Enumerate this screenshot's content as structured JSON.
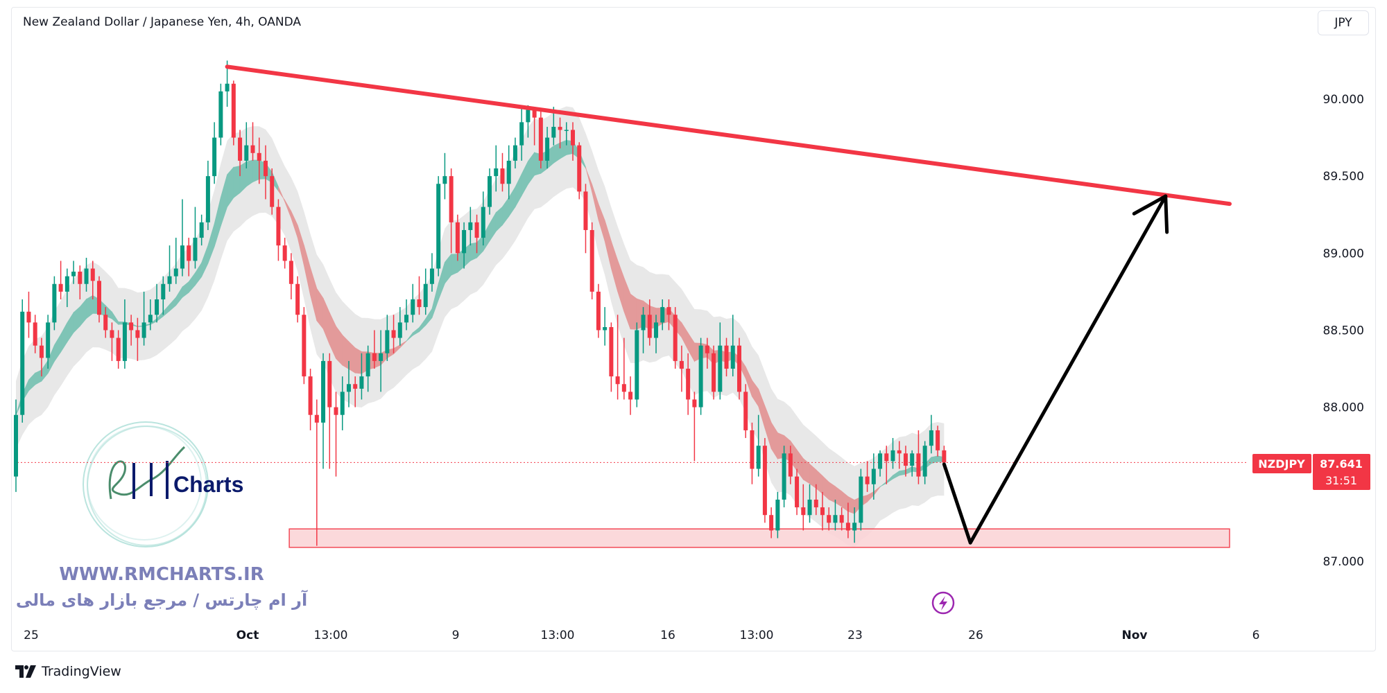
{
  "header": {
    "title": "New Zealand Dollar / Japanese Yen, 4h, OANDA",
    "currency_button": "JPY"
  },
  "colors": {
    "up": "#089981",
    "down": "#f23645",
    "trendline": "#f23645",
    "zone_fill": "#fbd5d8",
    "zone_border": "#f23645",
    "projection": "#000000",
    "ribbon_up": "#7fc4b6",
    "ribbon_down": "#e39a9a",
    "envelope": "#e4e4e4"
  },
  "price_axis": {
    "ticks": [
      "90.000",
      "89.500",
      "89.000",
      "88.500",
      "88.000",
      "87.000"
    ]
  },
  "time_axis": {
    "labels": [
      "25",
      "Oct",
      "13:00",
      "9",
      "13:00",
      "16",
      "13:00",
      "23",
      "26",
      "Nov",
      "6"
    ]
  },
  "last_price": {
    "symbol": "NZDJPY",
    "price": "87.641",
    "countdown": "31:51",
    "value": 87.641
  },
  "watermark": {
    "logo_text": "Charts",
    "url": "WWW.RMCHARTS.IR",
    "tagline": "آر ام چارتس / مرجع بازار های مالی"
  },
  "footer": {
    "brand": "TradingView"
  },
  "icons": {
    "alert": "lightning-icon",
    "brand": "tradingview-logo-icon"
  },
  "chart_data": {
    "type": "candlestick",
    "title": "New Zealand Dollar / Japanese Yen, 4h, OANDA",
    "symbol": "NZDJPY",
    "interval": "4h",
    "ylim": [
      86.55,
      90.65
    ],
    "grid": false,
    "ohlc": [
      [
        87.55,
        88.05,
        87.45,
        87.95
      ],
      [
        87.95,
        88.7,
        87.9,
        88.62
      ],
      [
        88.62,
        88.75,
        88.45,
        88.55
      ],
      [
        88.55,
        88.6,
        88.35,
        88.4
      ],
      [
        88.4,
        88.45,
        88.2,
        88.32
      ],
      [
        88.32,
        88.6,
        88.25,
        88.55
      ],
      [
        88.55,
        88.85,
        88.5,
        88.8
      ],
      [
        88.8,
        88.95,
        88.7,
        88.75
      ],
      [
        88.75,
        88.9,
        88.65,
        88.85
      ],
      [
        88.85,
        88.95,
        88.8,
        88.88
      ],
      [
        88.88,
        88.92,
        88.7,
        88.8
      ],
      [
        88.8,
        88.97,
        88.75,
        88.9
      ],
      [
        88.9,
        88.95,
        88.7,
        88.82
      ],
      [
        88.82,
        88.85,
        88.55,
        88.6
      ],
      [
        88.6,
        88.65,
        88.45,
        88.5
      ],
      [
        88.5,
        88.55,
        88.3,
        88.45
      ],
      [
        88.45,
        88.5,
        88.25,
        88.3
      ],
      [
        88.3,
        88.7,
        88.25,
        88.55
      ],
      [
        88.55,
        88.6,
        88.4,
        88.5
      ],
      [
        88.5,
        88.58,
        88.3,
        88.45
      ],
      [
        88.45,
        88.75,
        88.4,
        88.55
      ],
      [
        88.55,
        88.7,
        88.5,
        88.6
      ],
      [
        88.6,
        88.8,
        88.55,
        88.7
      ],
      [
        88.7,
        88.85,
        88.6,
        88.8
      ],
      [
        88.8,
        89.05,
        88.75,
        88.85
      ],
      [
        88.85,
        89.1,
        88.8,
        88.9
      ],
      [
        88.9,
        89.35,
        88.85,
        89.05
      ],
      [
        89.05,
        89.1,
        88.85,
        88.95
      ],
      [
        88.95,
        89.3,
        88.9,
        89.1
      ],
      [
        89.1,
        89.25,
        89.05,
        89.2
      ],
      [
        89.2,
        89.6,
        89.15,
        89.5
      ],
      [
        89.5,
        89.85,
        89.45,
        89.75
      ],
      [
        89.75,
        90.1,
        89.7,
        90.05
      ],
      [
        90.05,
        90.25,
        89.95,
        90.1
      ],
      [
        90.1,
        90.12,
        89.7,
        89.75
      ],
      [
        89.75,
        89.8,
        89.5,
        89.6
      ],
      [
        89.6,
        89.85,
        89.55,
        89.7
      ],
      [
        89.7,
        89.85,
        89.6,
        89.65
      ],
      [
        89.65,
        89.75,
        89.45,
        89.6
      ],
      [
        89.6,
        89.7,
        89.35,
        89.5
      ],
      [
        89.5,
        89.55,
        89.25,
        89.3
      ],
      [
        89.3,
        89.35,
        88.95,
        89.05
      ],
      [
        89.05,
        89.1,
        88.9,
        88.95
      ],
      [
        88.95,
        89.0,
        88.7,
        88.8
      ],
      [
        88.8,
        88.85,
        88.55,
        88.6
      ],
      [
        88.6,
        88.65,
        88.15,
        88.2
      ],
      [
        88.2,
        88.25,
        87.85,
        87.95
      ],
      [
        87.95,
        88.05,
        87.1,
        87.9
      ],
      [
        87.9,
        88.35,
        87.6,
        88.3
      ],
      [
        88.3,
        88.35,
        87.6,
        88.0
      ],
      [
        88.0,
        88.1,
        87.55,
        87.95
      ],
      [
        87.95,
        88.2,
        87.85,
        88.1
      ],
      [
        88.1,
        88.3,
        88.0,
        88.15
      ],
      [
        88.15,
        88.2,
        88.0,
        88.12
      ],
      [
        88.12,
        88.35,
        88.05,
        88.2
      ],
      [
        88.2,
        88.4,
        88.1,
        88.35
      ],
      [
        88.35,
        88.5,
        88.25,
        88.3
      ],
      [
        88.3,
        88.5,
        88.1,
        88.35
      ],
      [
        88.35,
        88.6,
        88.3,
        88.5
      ],
      [
        88.5,
        88.6,
        88.35,
        88.45
      ],
      [
        88.45,
        88.65,
        88.4,
        88.55
      ],
      [
        88.55,
        88.7,
        88.5,
        88.6
      ],
      [
        88.6,
        88.8,
        88.55,
        88.7
      ],
      [
        88.7,
        88.85,
        88.6,
        88.65
      ],
      [
        88.65,
        88.9,
        88.6,
        88.8
      ],
      [
        88.8,
        89.0,
        88.75,
        88.9
      ],
      [
        88.9,
        89.5,
        88.85,
        89.45
      ],
      [
        89.45,
        89.65,
        89.35,
        89.5
      ],
      [
        89.5,
        89.55,
        89.0,
        89.2
      ],
      [
        89.2,
        89.25,
        88.95,
        89.0
      ],
      [
        89.0,
        89.2,
        88.9,
        89.15
      ],
      [
        89.15,
        89.3,
        89.05,
        89.2
      ],
      [
        89.2,
        89.25,
        89.0,
        89.1
      ],
      [
        89.1,
        89.4,
        89.05,
        89.3
      ],
      [
        89.3,
        89.55,
        89.25,
        89.5
      ],
      [
        89.5,
        89.7,
        89.4,
        89.55
      ],
      [
        89.55,
        89.65,
        89.4,
        89.45
      ],
      [
        89.45,
        89.7,
        89.35,
        89.6
      ],
      [
        89.6,
        89.75,
        89.55,
        89.7
      ],
      [
        89.7,
        89.95,
        89.6,
        89.85
      ],
      [
        89.85,
        89.96,
        89.75,
        89.93
      ],
      [
        89.93,
        89.95,
        89.7,
        89.88
      ],
      [
        89.88,
        89.92,
        89.55,
        89.6
      ],
      [
        89.6,
        89.82,
        89.55,
        89.75
      ],
      [
        89.75,
        89.95,
        89.7,
        89.82
      ],
      [
        89.82,
        89.88,
        89.68,
        89.8
      ],
      [
        89.8,
        89.85,
        89.7,
        89.8
      ],
      [
        89.8,
        89.85,
        89.6,
        89.7
      ],
      [
        89.7,
        89.72,
        89.35,
        89.4
      ],
      [
        89.4,
        89.45,
        89.0,
        89.15
      ],
      [
        89.15,
        89.2,
        88.7,
        88.75
      ],
      [
        88.75,
        88.8,
        88.45,
        88.5
      ],
      [
        88.5,
        88.65,
        88.4,
        88.52
      ],
      [
        88.52,
        88.55,
        88.1,
        88.2
      ],
      [
        88.2,
        88.6,
        88.05,
        88.15
      ],
      [
        88.15,
        88.45,
        88.05,
        88.1
      ],
      [
        88.1,
        88.2,
        87.95,
        88.05
      ],
      [
        88.05,
        88.55,
        88.0,
        88.5
      ],
      [
        88.5,
        88.65,
        88.35,
        88.6
      ],
      [
        88.6,
        88.7,
        88.4,
        88.45
      ],
      [
        88.45,
        88.6,
        88.35,
        88.55
      ],
      [
        88.55,
        88.7,
        88.5,
        88.65
      ],
      [
        88.65,
        88.7,
        88.5,
        88.6
      ],
      [
        88.6,
        88.65,
        88.25,
        88.3
      ],
      [
        88.3,
        88.4,
        88.1,
        88.25
      ],
      [
        88.25,
        88.35,
        87.95,
        88.05
      ],
      [
        88.05,
        88.1,
        87.65,
        88.0
      ],
      [
        88.0,
        88.45,
        87.95,
        88.4
      ],
      [
        88.4,
        88.45,
        88.25,
        88.35
      ],
      [
        88.35,
        88.4,
        88.05,
        88.1
      ],
      [
        88.1,
        88.55,
        88.05,
        88.4
      ],
      [
        88.4,
        88.45,
        88.2,
        88.25
      ],
      [
        88.25,
        88.6,
        88.2,
        88.4
      ],
      [
        88.4,
        88.45,
        88.05,
        88.1
      ],
      [
        88.1,
        88.15,
        87.8,
        87.85
      ],
      [
        87.85,
        87.9,
        87.5,
        87.6
      ],
      [
        87.6,
        87.95,
        87.55,
        87.75
      ],
      [
        87.75,
        87.8,
        87.25,
        87.3
      ],
      [
        87.3,
        87.35,
        87.15,
        87.2
      ],
      [
        87.2,
        87.45,
        87.15,
        87.4
      ],
      [
        87.4,
        87.75,
        87.35,
        87.7
      ],
      [
        87.7,
        87.75,
        87.5,
        87.55
      ],
      [
        87.55,
        87.6,
        87.3,
        87.35
      ],
      [
        87.35,
        87.5,
        87.2,
        87.3
      ],
      [
        87.3,
        87.5,
        87.25,
        87.4
      ],
      [
        87.4,
        87.5,
        87.3,
        87.35
      ],
      [
        87.35,
        87.45,
        87.2,
        87.3
      ],
      [
        87.3,
        87.35,
        87.2,
        87.25
      ],
      [
        87.25,
        87.4,
        87.2,
        87.3
      ],
      [
        87.3,
        87.35,
        87.2,
        87.25
      ],
      [
        87.25,
        87.38,
        87.15,
        87.2
      ],
      [
        87.2,
        87.35,
        87.12,
        87.25
      ],
      [
        87.25,
        87.6,
        87.2,
        87.55
      ],
      [
        87.55,
        87.65,
        87.45,
        87.5
      ],
      [
        87.5,
        87.7,
        87.4,
        87.6
      ],
      [
        87.6,
        87.72,
        87.55,
        87.7
      ],
      [
        87.7,
        87.75,
        87.5,
        87.65
      ],
      [
        87.65,
        87.8,
        87.6,
        87.72
      ],
      [
        87.72,
        87.78,
        87.6,
        87.7
      ],
      [
        87.7,
        87.75,
        87.55,
        87.62
      ],
      [
        87.62,
        87.72,
        87.55,
        87.7
      ],
      [
        87.7,
        87.85,
        87.5,
        87.55
      ],
      [
        87.55,
        87.78,
        87.5,
        87.75
      ],
      [
        87.75,
        87.95,
        87.7,
        87.85
      ],
      [
        87.85,
        87.88,
        87.68,
        87.72
      ],
      [
        87.72,
        87.75,
        87.6,
        87.641
      ]
    ],
    "drawings": {
      "trendline": {
        "from": {
          "bar": 33,
          "price": 90.21
        },
        "to": {
          "bar": 189.6,
          "price": 89.32
        }
      },
      "support_zone": {
        "from_bar": 42.7,
        "to_bar": 189.6,
        "top": 87.21,
        "bottom": 87.09
      },
      "projection_path": [
        {
          "bar": 145,
          "price": 87.63
        },
        {
          "bar": 149.1,
          "price": 87.12
        },
        {
          "bar": 179.6,
          "price": 89.37
        }
      ]
    }
  }
}
